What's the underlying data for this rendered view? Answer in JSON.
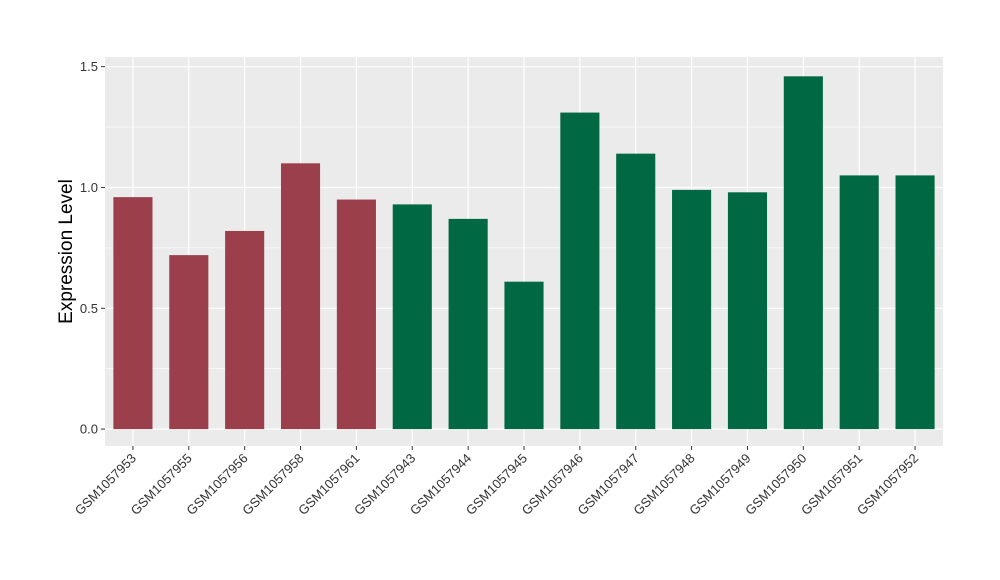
{
  "chart_data": {
    "type": "bar",
    "title": "",
    "xlabel": "",
    "ylabel": "Expression Level",
    "ylim": [
      -0.07,
      1.54
    ],
    "yticks": [
      0.0,
      0.5,
      1.0,
      1.5
    ],
    "ytick_labels": [
      "0.0",
      "0.5",
      "1.0",
      "1.5"
    ],
    "grid": true,
    "legend": "none",
    "colors": {
      "panel": "#ebebeb",
      "grid": "#ffffff",
      "group_a": "#9b3f4d",
      "group_b": "#006843"
    },
    "categories": [
      "GSM1057953",
      "GSM1057955",
      "GSM1057956",
      "GSM1057958",
      "GSM1057961",
      "GSM1057943",
      "GSM1057944",
      "GSM1057945",
      "GSM1057946",
      "GSM1057947",
      "GSM1057948",
      "GSM1057949",
      "GSM1057950",
      "GSM1057951",
      "GSM1057952"
    ],
    "values": [
      0.96,
      0.72,
      0.82,
      1.1,
      0.95,
      0.93,
      0.87,
      0.61,
      1.31,
      1.14,
      0.99,
      0.98,
      1.46,
      1.05,
      1.05
    ],
    "bar_colors": [
      "#9b3f4d",
      "#9b3f4d",
      "#9b3f4d",
      "#9b3f4d",
      "#9b3f4d",
      "#006843",
      "#006843",
      "#006843",
      "#006843",
      "#006843",
      "#006843",
      "#006843",
      "#006843",
      "#006843",
      "#006843"
    ]
  }
}
